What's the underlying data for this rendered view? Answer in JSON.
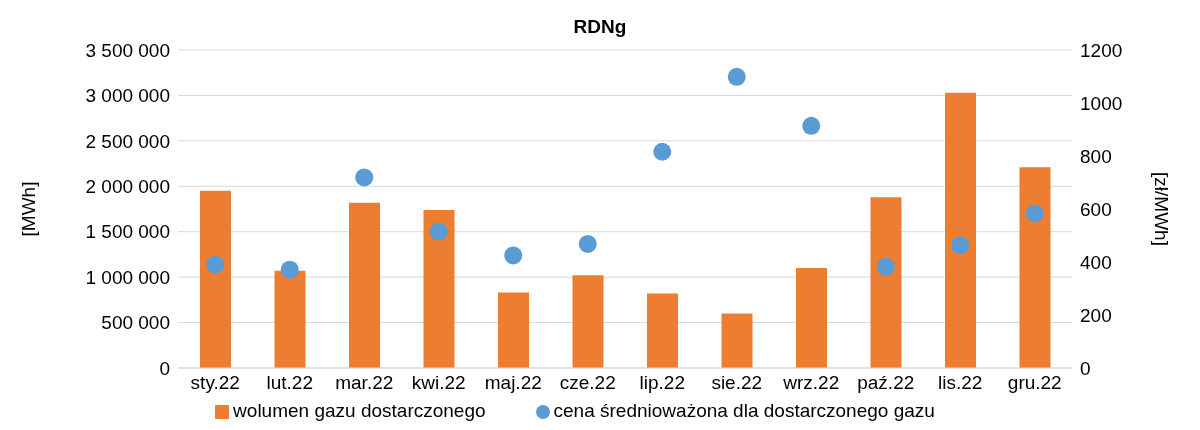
{
  "chart_data": {
    "type": "bar",
    "title": "RDNg",
    "ylabel": "[MWh]",
    "y2label": "[zł/MWh]",
    "categories": [
      "sty.22",
      "lut.22",
      "mar.22",
      "kwi.22",
      "maj.22",
      "cze.22",
      "lip.22",
      "sie.22",
      "wrz.22",
      "paź.22",
      "lis.22",
      "gru.22"
    ],
    "series": [
      {
        "name": "wolumen gazu dostarczonego",
        "color": "#ed7d31",
        "values": [
          1950000,
          1070000,
          1820000,
          1740000,
          830000,
          1020000,
          820000,
          600000,
          1100000,
          1880000,
          3030000,
          2210000
        ]
      },
      {
        "name": "cena średnioważona dla dostarczonego gazu",
        "type": "scatter",
        "axis": "y2",
        "color": "#5b9bd5",
        "values": [
          390,
          371,
          719,
          515,
          425,
          468,
          816,
          1099,
          914,
          382,
          463,
          583
        ]
      }
    ],
    "ylim": [
      0,
      3500000
    ],
    "yticks": [
      0,
      {
        "value": 500000,
        "label": "500 000"
      },
      {
        "value": 1000000,
        "label": "1 000 000"
      },
      {
        "value": 1500000,
        "label": "1 500 000"
      },
      {
        "value": 2000000,
        "label": "2 000 000"
      },
      {
        "value": 2500000,
        "label": "2 500 000"
      },
      {
        "value": 3000000,
        "label": "3 000 000"
      },
      {
        "value": 3500000,
        "label": "3 500 000"
      }
    ],
    "y2lim": [
      0,
      1200
    ],
    "y2ticks": [
      0,
      200,
      400,
      600,
      800,
      1000,
      1200
    ],
    "grid": "y",
    "legend": "bottom",
    "marker": "circle"
  }
}
